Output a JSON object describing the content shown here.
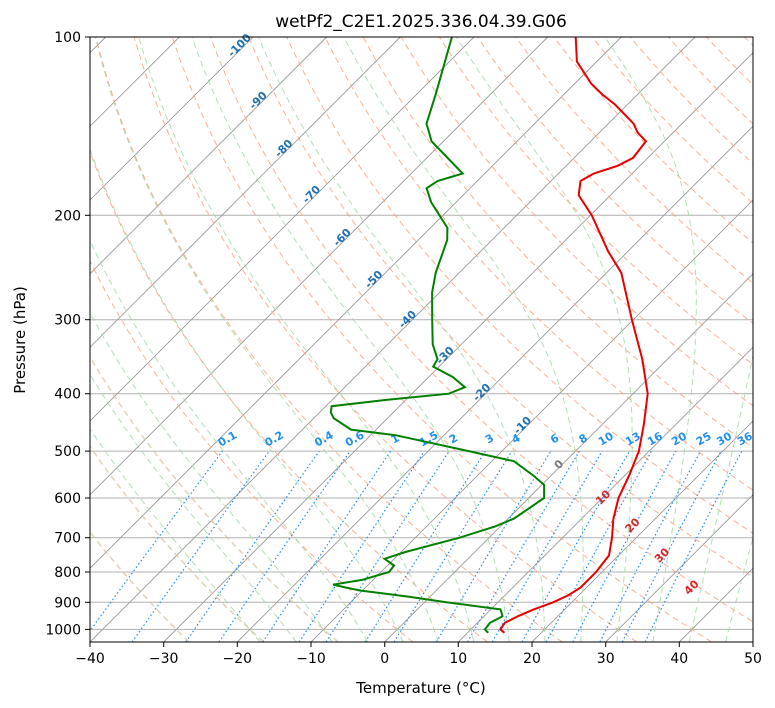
{
  "chart_data": {
    "type": "line",
    "subtype": "skew-t log-p sounding",
    "title": "wetPf2_C2E1.2025.336.04.39.G06",
    "xlabel": "Temperature (°C)",
    "ylabel": "Pressure (hPa)",
    "xlim": [
      -40,
      50
    ],
    "ylim": [
      1050,
      100
    ],
    "x_ticks": [
      -40,
      -30,
      -20,
      -10,
      0,
      10,
      20,
      30,
      40,
      50
    ],
    "x_tick_labels": [
      "−40",
      "−30",
      "−20",
      "−10",
      "0",
      "10",
      "20",
      "30",
      "40",
      "50"
    ],
    "y_ticks": [
      1000,
      900,
      800,
      700,
      600,
      500,
      400,
      300,
      200,
      100
    ],
    "y_tick_labels": [
      "1000",
      "900",
      "800",
      "700",
      "600",
      "500",
      "400",
      "300",
      "200",
      "100"
    ],
    "grid": true,
    "colors": {
      "temperature": "#e60000",
      "dewpoint": "#008000",
      "isotherm": "#999999",
      "dry_adiabat": "#f4a582",
      "moist_adiabat": "#a6d8a6",
      "mixing_ratio": "#1f8ff0",
      "isotherm_label": "#1f6fb0",
      "adiabat_label": "#d62728",
      "zero_label": "#777777",
      "frame": "#000000"
    },
    "series": [
      {
        "name": "Temperature",
        "pressure": [
          1013,
          1000,
          975,
          950,
          925,
          900,
          875,
          850,
          800,
          750,
          700,
          650,
          600,
          550,
          500,
          450,
          400,
          350,
          300,
          250,
          230,
          200,
          185,
          175,
          170,
          165,
          160,
          150,
          145,
          140,
          130,
          125,
          120,
          110,
          100
        ],
        "temperature": [
          15.0,
          14.0,
          13.7,
          14.6,
          15.8,
          17.5,
          18.6,
          19.2,
          19.2,
          18.7,
          16.7,
          14.3,
          12.2,
          10.6,
          8.6,
          5.6,
          2.0,
          -3.4,
          -10.2,
          -18.0,
          -22.7,
          -29.8,
          -34.3,
          -36.0,
          -35.2,
          -33.0,
          -32.0,
          -32.5,
          -34.8,
          -36.6,
          -41.7,
          -44.8,
          -47.7,
          -52.7,
          -56.2
        ]
      },
      {
        "name": "Dewpoint",
        "pressure": [
          1013,
          1000,
          975,
          950,
          925,
          900,
          880,
          860,
          850,
          840,
          825,
          800,
          780,
          760,
          740,
          700,
          670,
          650,
          600,
          570,
          550,
          520,
          500,
          470,
          460,
          440,
          430,
          420,
          410,
          400,
          390,
          375,
          360,
          350,
          330,
          300,
          270,
          250,
          220,
          210,
          190,
          180,
          175,
          170,
          150,
          140,
          125,
          100
        ],
        "temperature": [
          12.8,
          11.9,
          11.7,
          12.5,
          11.3,
          3.0,
          -3.0,
          -10.2,
          -12.6,
          -14.8,
          -11.5,
          -8.9,
          -9.1,
          -11.3,
          -9.4,
          -4.0,
          -0.7,
          0.8,
          2.1,
          0.3,
          -2.4,
          -7.0,
          -14.5,
          -26.6,
          -33.4,
          -37.3,
          -38.5,
          -39.2,
          -32.8,
          -25.0,
          -23.7,
          -26.7,
          -30.8,
          -31.2,
          -33.9,
          -37.3,
          -41.0,
          -43.2,
          -46.1,
          -47.7,
          -53.4,
          -55.9,
          -55.4,
          -53.0,
          -61.6,
          -64.7,
          -67.4,
          -73.0
        ]
      }
    ],
    "isotherm_labels": [
      "-100",
      "-90",
      "-80",
      "-70",
      "-60",
      "-50",
      "-40",
      "-30",
      "-20",
      "-10"
    ],
    "mixing_ratio_labels": [
      "0.1",
      "0.2",
      "0.4",
      "0.6",
      "1",
      "1.5",
      "2",
      "3",
      "4",
      "6",
      "8",
      "10",
      "13",
      "16",
      "20",
      "25",
      "30",
      "36"
    ],
    "moist_adiabat_labels": [
      "0",
      "10",
      "20",
      "30",
      "40"
    ]
  }
}
